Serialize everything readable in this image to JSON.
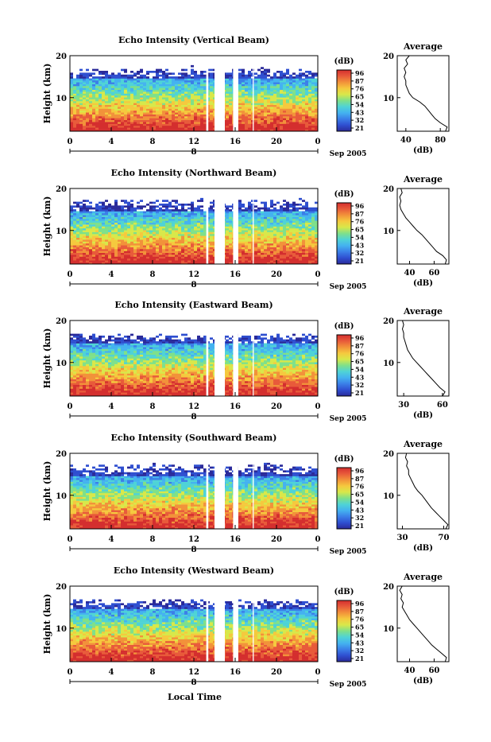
{
  "figure": {
    "xlabel": "Local Time",
    "colors": [
      "#2a2a9a",
      "#2f4fd0",
      "#3b7fe8",
      "#44b2f0",
      "#4fd3d6",
      "#7fe08a",
      "#d8e84a",
      "#f5c93e",
      "#f2923a",
      "#e85a3a",
      "#d42e2e"
    ],
    "colorbar": {
      "label": "(dB)",
      "ticks": [
        "96",
        "87",
        "76",
        "65",
        "54",
        "43",
        "32",
        "21"
      ]
    }
  },
  "chart_data": [
    {
      "type": "heatmap",
      "title": "Echo Intensity (Vertical Beam)",
      "ylabel": "Height (km)",
      "xlabel": "",
      "x_ticks": [
        "0",
        "4",
        "8",
        "12",
        "16",
        "20",
        "0"
      ],
      "y_ticks": [
        "20",
        "10"
      ],
      "date_tick": "8",
      "date_label": "Sep 2005",
      "xlim": [
        0,
        24
      ],
      "ylim": [
        2,
        20
      ],
      "colorbar_ticks": [
        "96",
        "87",
        "76",
        "65",
        "54",
        "43",
        "32",
        "21"
      ],
      "colorbar_unit": "(dB)",
      "data_gaps_hours": [
        [
          13.2,
          13.4
        ],
        [
          14.0,
          15.0
        ],
        [
          15.8,
          16.3
        ],
        [
          17.7,
          17.8
        ]
      ],
      "profile": {
        "title": "Average",
        "xlabel": "(dB)",
        "x_ticks": [
          "40",
          "80"
        ],
        "x_tick_values": [
          40,
          80
        ],
        "xlim": [
          30,
          90
        ],
        "y_ticks": [
          "20",
          "10"
        ],
        "ylim": [
          2,
          20
        ],
        "heights_km": [
          2,
          3,
          4,
          5,
          6,
          7,
          8,
          9,
          10,
          11,
          12,
          13,
          14,
          15,
          16,
          17,
          18,
          19,
          20
        ],
        "values_db": [
          86,
          88,
          80,
          74,
          70,
          66,
          62,
          56,
          48,
          44,
          42,
          40,
          40,
          38,
          40,
          38,
          42,
          40,
          44
        ]
      }
    },
    {
      "type": "heatmap",
      "title": "Echo Intensity (Northward Beam)",
      "ylabel": "Height (km)",
      "xlabel": "",
      "x_ticks": [
        "0",
        "4",
        "8",
        "12",
        "16",
        "20",
        "0"
      ],
      "y_ticks": [
        "20",
        "10"
      ],
      "date_tick": "8",
      "date_label": "Sep 2005",
      "xlim": [
        0,
        24
      ],
      "ylim": [
        2,
        20
      ],
      "colorbar_ticks": [
        "96",
        "87",
        "76",
        "65",
        "54",
        "43",
        "32",
        "21"
      ],
      "colorbar_unit": "(dB)",
      "data_gaps_hours": [
        [
          13.2,
          13.4
        ],
        [
          14.0,
          15.0
        ],
        [
          15.8,
          16.3
        ],
        [
          17.7,
          17.8
        ]
      ],
      "profile": {
        "title": "Average",
        "xlabel": "(dB)",
        "x_ticks": [
          "40",
          "60"
        ],
        "x_tick_values": [
          40,
          60
        ],
        "xlim": [
          30,
          72
        ],
        "y_ticks": [
          "20",
          "10"
        ],
        "ylim": [
          2,
          20
        ],
        "heights_km": [
          2,
          3,
          4,
          5,
          6,
          7,
          8,
          9,
          10,
          11,
          12,
          13,
          14,
          15,
          16,
          17,
          18,
          19,
          20
        ],
        "values_db": [
          69,
          70,
          67,
          62,
          59,
          56,
          53,
          50,
          46,
          43,
          40,
          37,
          35,
          33,
          32,
          33,
          32,
          34,
          33
        ]
      }
    },
    {
      "type": "heatmap",
      "title": "Echo Intensity (Eastward Beam)",
      "ylabel": "Height (km)",
      "xlabel": "",
      "x_ticks": [
        "0",
        "4",
        "8",
        "12",
        "16",
        "20",
        "0"
      ],
      "y_ticks": [
        "20",
        "10"
      ],
      "date_tick": "8",
      "date_label": "Sep 2005",
      "xlim": [
        0,
        24
      ],
      "ylim": [
        2,
        20
      ],
      "colorbar_ticks": [
        "96",
        "87",
        "76",
        "65",
        "54",
        "43",
        "32",
        "21"
      ],
      "colorbar_unit": "(dB)",
      "data_gaps_hours": [
        [
          13.2,
          13.4
        ],
        [
          14.0,
          15.0
        ],
        [
          15.8,
          16.3
        ],
        [
          17.7,
          17.8
        ]
      ],
      "profile": {
        "title": "Average",
        "xlabel": "(dB)",
        "x_ticks": [
          "30",
          "60"
        ],
        "x_tick_values": [
          30,
          60
        ],
        "xlim": [
          25,
          65
        ],
        "y_ticks": [
          "20",
          "10"
        ],
        "ylim": [
          2,
          20
        ],
        "heights_km": [
          2,
          3,
          4,
          5,
          6,
          7,
          8,
          9,
          10,
          11,
          12,
          13,
          14,
          15,
          16,
          17,
          18,
          19,
          20
        ],
        "values_db": [
          60,
          62,
          58,
          55,
          52,
          49,
          46,
          43,
          40,
          37,
          35,
          33,
          32,
          31,
          30,
          30,
          29,
          30,
          29
        ]
      }
    },
    {
      "type": "heatmap",
      "title": "Echo Intensity (Southward Beam)",
      "ylabel": "Height (km)",
      "xlabel": "",
      "x_ticks": [
        "0",
        "4",
        "8",
        "12",
        "16",
        "20",
        "0"
      ],
      "y_ticks": [
        "20",
        "10"
      ],
      "date_tick": "8",
      "date_label": "Sep 2005",
      "xlim": [
        0,
        24
      ],
      "ylim": [
        2,
        20
      ],
      "colorbar_ticks": [
        "96",
        "87",
        "76",
        "65",
        "54",
        "43",
        "32",
        "21"
      ],
      "colorbar_unit": "(dB)",
      "data_gaps_hours": [
        [
          13.2,
          13.4
        ],
        [
          14.0,
          15.0
        ],
        [
          15.8,
          16.3
        ],
        [
          17.7,
          17.8
        ]
      ],
      "profile": {
        "title": "Average",
        "xlabel": "(dB)",
        "x_ticks": [
          "30",
          "70"
        ],
        "x_tick_values": [
          30,
          70
        ],
        "xlim": [
          25,
          75
        ],
        "y_ticks": [
          "20",
          "10"
        ],
        "ylim": [
          2,
          20
        ],
        "heights_km": [
          2,
          3,
          4,
          5,
          6,
          7,
          8,
          9,
          10,
          11,
          12,
          13,
          14,
          15,
          16,
          17,
          18,
          19,
          20
        ],
        "values_db": [
          72,
          74,
          70,
          66,
          62,
          58,
          55,
          52,
          49,
          45,
          42,
          40,
          38,
          36,
          36,
          34,
          35,
          33,
          34
        ]
      }
    },
    {
      "type": "heatmap",
      "title": "Echo Intensity (Westward Beam)",
      "ylabel": "Height (km)",
      "xlabel": "",
      "x_ticks": [
        "0",
        "4",
        "8",
        "12",
        "16",
        "20",
        "0"
      ],
      "y_ticks": [
        "20",
        "10"
      ],
      "date_tick": "8",
      "date_label": "Sep 2005",
      "xlim": [
        0,
        24
      ],
      "ylim": [
        2,
        20
      ],
      "colorbar_ticks": [
        "96",
        "87",
        "76",
        "65",
        "54",
        "43",
        "32",
        "21"
      ],
      "colorbar_unit": "(dB)",
      "data_gaps_hours": [
        [
          13.2,
          13.4
        ],
        [
          14.0,
          15.0
        ],
        [
          15.8,
          16.3
        ],
        [
          17.7,
          17.8
        ]
      ],
      "profile": {
        "title": "Average",
        "xlabel": "(dB)",
        "x_ticks": [
          "40",
          "60"
        ],
        "x_tick_values": [
          40,
          60
        ],
        "xlim": [
          30,
          72
        ],
        "y_ticks": [
          "20",
          "10"
        ],
        "ylim": [
          2,
          20
        ],
        "heights_km": [
          2,
          3,
          4,
          5,
          6,
          7,
          8,
          9,
          10,
          11,
          12,
          13,
          14,
          15,
          16,
          17,
          18,
          19,
          20
        ],
        "values_db": [
          69,
          70,
          66,
          62,
          58,
          55,
          52,
          49,
          46,
          43,
          40,
          38,
          36,
          34,
          35,
          33,
          34,
          32,
          34
        ]
      }
    }
  ]
}
